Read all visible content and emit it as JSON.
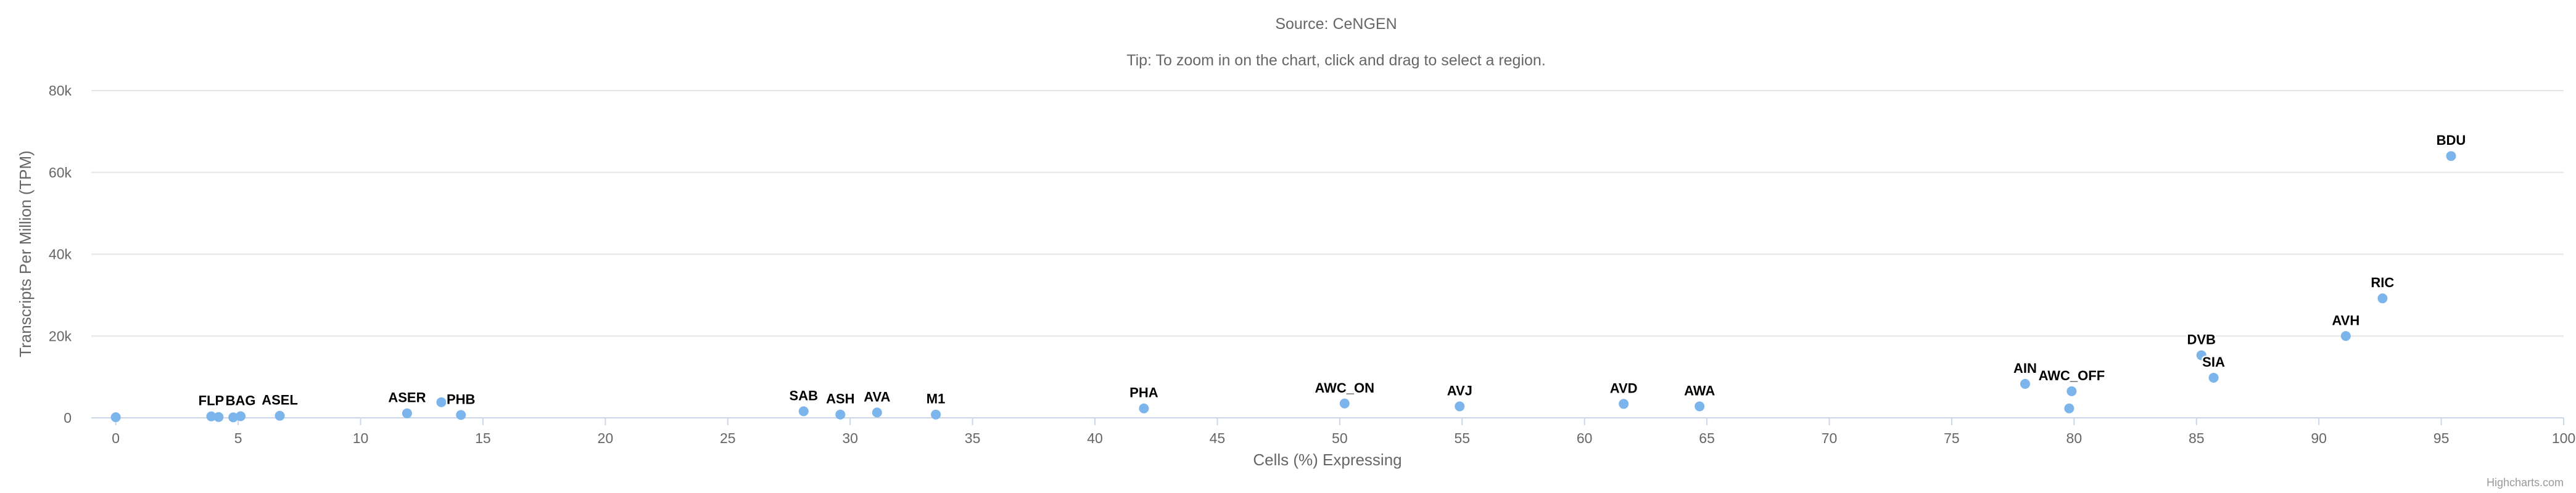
{
  "chart_data": {
    "type": "scatter",
    "subtitle_lines": [
      "Source: CeNGEN",
      "Tip: To zoom in on the chart, click and drag to select a region."
    ],
    "xlabel": "Cells (%) Expressing",
    "ylabel": "Transcripts Per Million (TPM)",
    "xlim": [
      -1,
      100
    ],
    "ylim": [
      0,
      80000
    ],
    "xticks": [
      0,
      5,
      10,
      15,
      20,
      25,
      30,
      35,
      40,
      45,
      50,
      55,
      60,
      65,
      70,
      75,
      80,
      85,
      90,
      95,
      100
    ],
    "yticks": [
      0,
      20000,
      40000,
      60000,
      80000
    ],
    "ytick_labels": [
      "0",
      "20k",
      "40k",
      "60k",
      "80k"
    ],
    "grid": true,
    "point_color": "#7cb5ec",
    "points": [
      {
        "x": 0,
        "y": 150,
        "label": ""
      },
      {
        "x": 3.9,
        "y": 350,
        "label": "FLP"
      },
      {
        "x": 4.2,
        "y": 200,
        "label": ""
      },
      {
        "x": 4.8,
        "y": 120,
        "label": ""
      },
      {
        "x": 5.1,
        "y": 400,
        "label": "BAG"
      },
      {
        "x": 6.7,
        "y": 500,
        "label": "ASEL"
      },
      {
        "x": 11.9,
        "y": 1100,
        "label": "ASER"
      },
      {
        "x": 13.3,
        "y": 3800,
        "label": ""
      },
      {
        "x": 14.1,
        "y": 700,
        "label": "PHB"
      },
      {
        "x": 28.1,
        "y": 1600,
        "label": "SAB"
      },
      {
        "x": 29.6,
        "y": 800,
        "label": "ASH"
      },
      {
        "x": 31.1,
        "y": 1300,
        "label": "AVA"
      },
      {
        "x": 33.5,
        "y": 800,
        "label": "M1"
      },
      {
        "x": 42.0,
        "y": 2300,
        "label": "PHA"
      },
      {
        "x": 50.2,
        "y": 3500,
        "label": "AWC_ON"
      },
      {
        "x": 54.9,
        "y": 2800,
        "label": "AVJ"
      },
      {
        "x": 61.6,
        "y": 3400,
        "label": "AVD"
      },
      {
        "x": 64.7,
        "y": 2800,
        "label": "AWA"
      },
      {
        "x": 78.0,
        "y": 8300,
        "label": "AIN"
      },
      {
        "x": 79.8,
        "y": 2300,
        "label": ""
      },
      {
        "x": 79.9,
        "y": 6500,
        "label": "AWC_OFF"
      },
      {
        "x": 85.2,
        "y": 15300,
        "label": "DVB"
      },
      {
        "x": 85.7,
        "y": 9800,
        "label": "SIA"
      },
      {
        "x": 91.1,
        "y": 20000,
        "label": "AVH"
      },
      {
        "x": 92.6,
        "y": 29200,
        "label": "RIC"
      },
      {
        "x": 95.4,
        "y": 64000,
        "label": "BDU"
      }
    ]
  },
  "credits": "Highcharts.com"
}
